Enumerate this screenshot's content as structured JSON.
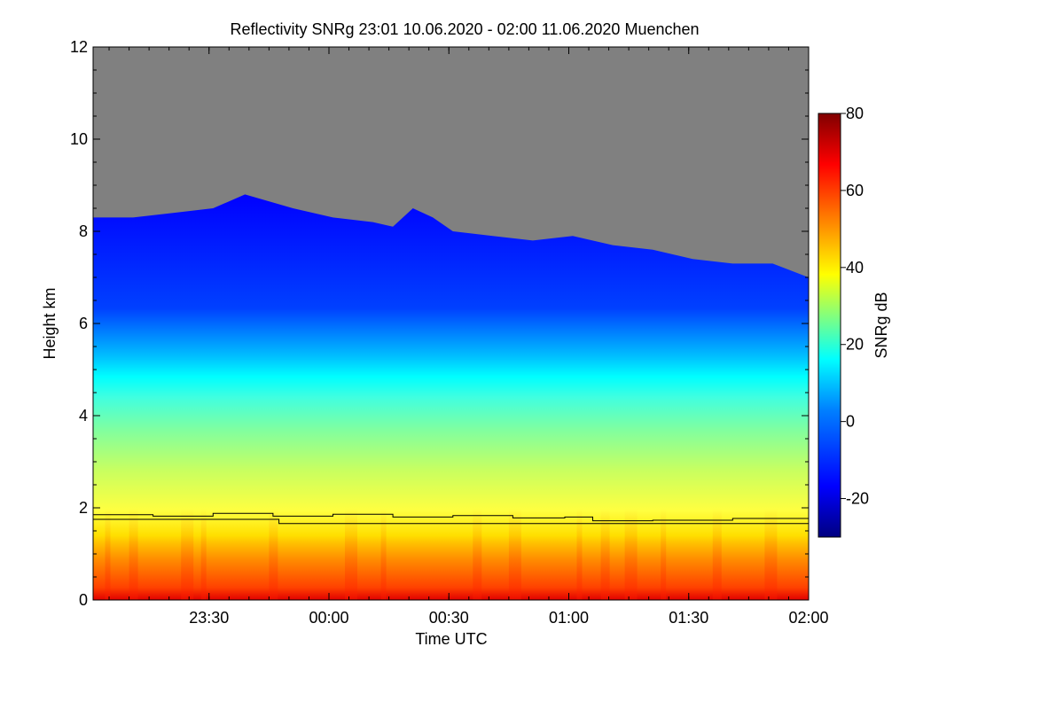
{
  "chart_data": {
    "type": "heatmap",
    "title": "Reflectivity SNRg   23:01 10.06.2020 - 02:00 11.06.2020 Muenchen",
    "xlabel": "Time UTC",
    "ylabel": "Height km",
    "x_ticks": [
      {
        "value": 29,
        "label": "23:30"
      },
      {
        "value": 59,
        "label": "00:00"
      },
      {
        "value": 89,
        "label": "00:30"
      },
      {
        "value": 119,
        "label": "01:00"
      },
      {
        "value": 149,
        "label": "01:30"
      },
      {
        "value": 179,
        "label": "02:00"
      }
    ],
    "xlim": [
      0,
      179
    ],
    "ylim": [
      0,
      12
    ],
    "y_ticks": [
      0,
      2,
      4,
      6,
      8,
      10,
      12
    ],
    "colorbar": {
      "label": "SNRg dB",
      "range": [
        -30,
        80
      ],
      "ticks": [
        -20,
        0,
        20,
        40,
        60,
        80
      ],
      "colors": [
        "#000080",
        "#0000ff",
        "#0080ff",
        "#00ffff",
        "#80ff80",
        "#ffff00",
        "#ff8000",
        "#ff0000",
        "#800000"
      ]
    },
    "no_signal_color": "#808080",
    "cloud_top_km": [
      {
        "t": 0,
        "h": 8.3
      },
      {
        "t": 10,
        "h": 8.3
      },
      {
        "t": 20,
        "h": 8.4
      },
      {
        "t": 30,
        "h": 8.5
      },
      {
        "t": 38,
        "h": 8.8
      },
      {
        "t": 50,
        "h": 8.5
      },
      {
        "t": 60,
        "h": 8.3
      },
      {
        "t": 70,
        "h": 8.2
      },
      {
        "t": 75,
        "h": 8.1
      },
      {
        "t": 80,
        "h": 8.5
      },
      {
        "t": 85,
        "h": 8.3
      },
      {
        "t": 90,
        "h": 8.0
      },
      {
        "t": 100,
        "h": 7.9
      },
      {
        "t": 110,
        "h": 7.8
      },
      {
        "t": 120,
        "h": 7.9
      },
      {
        "t": 130,
        "h": 7.7
      },
      {
        "t": 140,
        "h": 7.6
      },
      {
        "t": 150,
        "h": 7.4
      },
      {
        "t": 160,
        "h": 7.3
      },
      {
        "t": 170,
        "h": 7.3
      },
      {
        "t": 179,
        "h": 7.0
      }
    ],
    "boundary_layer_km": [
      {
        "t": 0,
        "h": 1.85
      },
      {
        "t": 15,
        "h": 1.82
      },
      {
        "t": 30,
        "h": 1.88
      },
      {
        "t": 45,
        "h": 1.82
      },
      {
        "t": 60,
        "h": 1.86
      },
      {
        "t": 75,
        "h": 1.8
      },
      {
        "t": 90,
        "h": 1.83
      },
      {
        "t": 105,
        "h": 1.78
      },
      {
        "t": 118,
        "h": 1.8
      },
      {
        "t": 125,
        "h": 1.72
      },
      {
        "t": 140,
        "h": 1.73
      },
      {
        "t": 160,
        "h": 1.77
      },
      {
        "t": 179,
        "h": 1.8
      }
    ],
    "boundary_layer_lower_km": [
      {
        "t": 0,
        "h": 1.75
      },
      {
        "t": 46,
        "h": 1.75
      },
      {
        "t": 46.5,
        "h": 1.66
      },
      {
        "t": 179,
        "h": 1.66
      }
    ]
  }
}
